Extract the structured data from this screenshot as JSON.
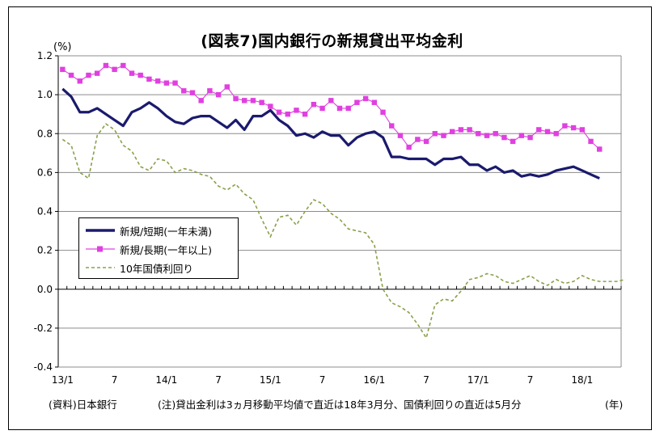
{
  "title": "(図表7)国内銀行の新規貸出平均金利",
  "footer": {
    "source": "(資料)日本銀行",
    "note": "(注)貸出金利は3ヵ月移動平均値で直近は18年3月分、国債利回りの直近は5月分"
  },
  "colors": {
    "short": "#1a1a6e",
    "long": "#e040e0",
    "jgb": "#8aa04a"
  },
  "chart_data": {
    "type": "line",
    "title": "(図表7)国内銀行の新規貸出平均金利",
    "ylabel": "(%)",
    "xlabel": "(年)",
    "ylim": [
      -0.4,
      1.2
    ],
    "yticks": [
      "1.2",
      "1.0",
      "0.8",
      "0.6",
      "0.4",
      "0.2",
      "0.0",
      "-0.2",
      "-0.4"
    ],
    "ytick_values": [
      1.2,
      1.0,
      0.8,
      0.6,
      0.4,
      0.2,
      0.0,
      -0.2,
      -0.4
    ],
    "grid": "horizontal",
    "legend_position": "left-middle",
    "x_labels": [
      "13/1",
      "7",
      "14/1",
      "7",
      "15/1",
      "7",
      "16/1",
      "7",
      "17/1",
      "7",
      "18/1"
    ],
    "x_label_months": [
      0,
      6,
      12,
      18,
      24,
      30,
      36,
      42,
      48,
      54,
      60
    ],
    "x_months_total": 65,
    "series": [
      {
        "name": "新規/短期(一年未満)",
        "values": [
          1.03,
          0.99,
          0.91,
          0.91,
          0.93,
          0.9,
          0.87,
          0.84,
          0.91,
          0.93,
          0.96,
          0.93,
          0.89,
          0.86,
          0.85,
          0.88,
          0.89,
          0.89,
          0.86,
          0.83,
          0.87,
          0.82,
          0.89,
          0.89,
          0.92,
          0.87,
          0.84,
          0.79,
          0.8,
          0.78,
          0.81,
          0.79,
          0.79,
          0.74,
          0.78,
          0.8,
          0.81,
          0.78,
          0.68,
          0.68,
          0.67,
          0.67,
          0.67,
          0.64,
          0.67,
          0.67,
          0.68,
          0.64,
          0.64,
          0.61,
          0.63,
          0.6,
          0.61,
          0.58,
          0.59,
          0.58,
          0.59,
          0.61,
          0.62,
          0.63,
          0.61,
          0.59,
          0.57
        ]
      },
      {
        "name": "新規/長期(一年以上)",
        "values": [
          1.13,
          1.1,
          1.07,
          1.1,
          1.11,
          1.15,
          1.13,
          1.15,
          1.11,
          1.1,
          1.08,
          1.07,
          1.06,
          1.06,
          1.02,
          1.01,
          0.97,
          1.02,
          1.0,
          1.04,
          0.98,
          0.97,
          0.97,
          0.96,
          0.94,
          0.91,
          0.9,
          0.92,
          0.9,
          0.95,
          0.93,
          0.97,
          0.93,
          0.93,
          0.96,
          0.98,
          0.96,
          0.91,
          0.84,
          0.79,
          0.73,
          0.77,
          0.76,
          0.8,
          0.79,
          0.81,
          0.82,
          0.82,
          0.8,
          0.79,
          0.8,
          0.78,
          0.76,
          0.79,
          0.78,
          0.82,
          0.81,
          0.8,
          0.84,
          0.83,
          0.82,
          0.76,
          0.72
        ]
      },
      {
        "name": "10年国債利回り",
        "values": [
          0.77,
          0.74,
          0.6,
          0.57,
          0.79,
          0.85,
          0.82,
          0.74,
          0.71,
          0.63,
          0.61,
          0.67,
          0.66,
          0.6,
          0.62,
          0.61,
          0.59,
          0.58,
          0.53,
          0.51,
          0.54,
          0.49,
          0.46,
          0.36,
          0.27,
          0.37,
          0.38,
          0.33,
          0.4,
          0.46,
          0.44,
          0.39,
          0.36,
          0.31,
          0.3,
          0.29,
          0.23,
          0.0,
          -0.07,
          -0.09,
          -0.12,
          -0.18,
          -0.25,
          -0.08,
          -0.05,
          -0.06,
          -0.01,
          0.05,
          0.06,
          0.08,
          0.07,
          0.04,
          0.03,
          0.05,
          0.07,
          0.04,
          0.02,
          0.05,
          0.03,
          0.04,
          0.07,
          0.05,
          0.04,
          0.04,
          0.04,
          0.05
        ]
      }
    ]
  }
}
